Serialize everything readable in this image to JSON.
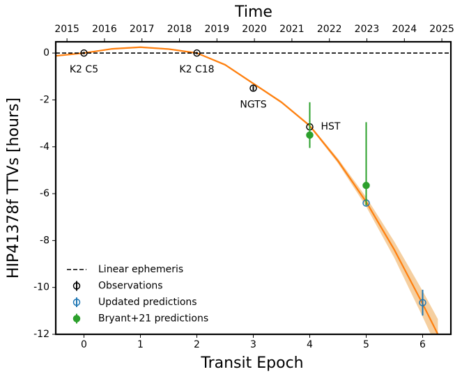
{
  "chart_data": {
    "type": "errorbar",
    "xlabel": "Transit Epoch",
    "ylabel": "HIP41378f TTVs [hours]",
    "x2label": "Time",
    "xlim": [
      -0.5,
      6.5
    ],
    "xticks": [
      0,
      1,
      2,
      3,
      4,
      5,
      6
    ],
    "ylim": [
      -12,
      0.48
    ],
    "yticks": [
      0,
      -2,
      -4,
      -6,
      -8,
      -10,
      -12
    ],
    "x2lim": [
      2014.7,
      2025.24
    ],
    "x2ticks": [
      2015,
      2016,
      2017,
      2018,
      2019,
      2020,
      2021,
      2022,
      2023,
      2024,
      2025
    ],
    "legend": "lower left",
    "series": [
      {
        "type": "band",
        "color": "#f5cfa0",
        "x": [
          -0.5,
          0,
          0.5,
          1,
          1.5,
          2,
          2.5,
          3,
          3.5,
          4,
          4.5,
          5,
          5.5,
          6,
          6.27
        ],
        "lower": [
          -0.15,
          -0.03,
          0.15,
          0.22,
          0.14,
          -0.03,
          -0.54,
          -1.34,
          -2.15,
          -3.15,
          -4.7,
          -6.55,
          -8.75,
          -11.25,
          -12.65
        ],
        "upper": [
          -0.09,
          0.03,
          0.21,
          0.28,
          0.2,
          0.03,
          -0.46,
          -1.26,
          -2.05,
          -3.05,
          -4.5,
          -6.15,
          -8.05,
          -10.15,
          -11.35
        ]
      },
      {
        "type": "line",
        "color": "#ff7f0e",
        "x": [
          -0.5,
          0,
          0.5,
          1,
          1.5,
          2,
          2.5,
          3,
          3.5,
          4,
          4.5,
          5,
          5.5,
          6,
          6.27
        ],
        "values": [
          -0.12,
          0,
          0.18,
          0.25,
          0.17,
          0,
          -0.5,
          -1.3,
          -2.1,
          -3.1,
          -4.6,
          -6.35,
          -8.4,
          -10.7,
          -12
        ]
      },
      {
        "type": "line",
        "name": "Linear ephemeris",
        "color": "#000000",
        "style": "dashed",
        "x": [
          -0.5,
          6.5
        ],
        "values": [
          0,
          0
        ]
      },
      {
        "type": "errorbar",
        "name": "Observations",
        "color": "#000000",
        "marker": "open",
        "x": [
          0,
          2,
          3,
          4
        ],
        "values": [
          0,
          0,
          -1.5,
          -3.15
        ],
        "error_low": [
          0.05,
          0.05,
          0.1,
          0.1
        ],
        "error_high": [
          0.05,
          0.05,
          0.1,
          0.1
        ]
      },
      {
        "type": "errorbar",
        "name": "Updated predictions",
        "color": "#1f77b4",
        "marker": "open",
        "x": [
          5,
          6
        ],
        "values": [
          -6.4,
          -10.65
        ],
        "error_low": [
          0.1,
          0.55
        ],
        "error_high": [
          0.1,
          0.55
        ]
      },
      {
        "type": "errorbar",
        "name": "Bryant+21 predictions",
        "color": "#2ca02c",
        "marker": "filled",
        "x": [
          4,
          5
        ],
        "values": [
          -3.5,
          -5.65
        ],
        "error_low": [
          0.55,
          0.85
        ],
        "error_high": [
          1.4,
          2.7
        ]
      }
    ],
    "annotations": [
      "K2 C5",
      "K2 C18",
      "NGTS",
      "HST"
    ]
  }
}
